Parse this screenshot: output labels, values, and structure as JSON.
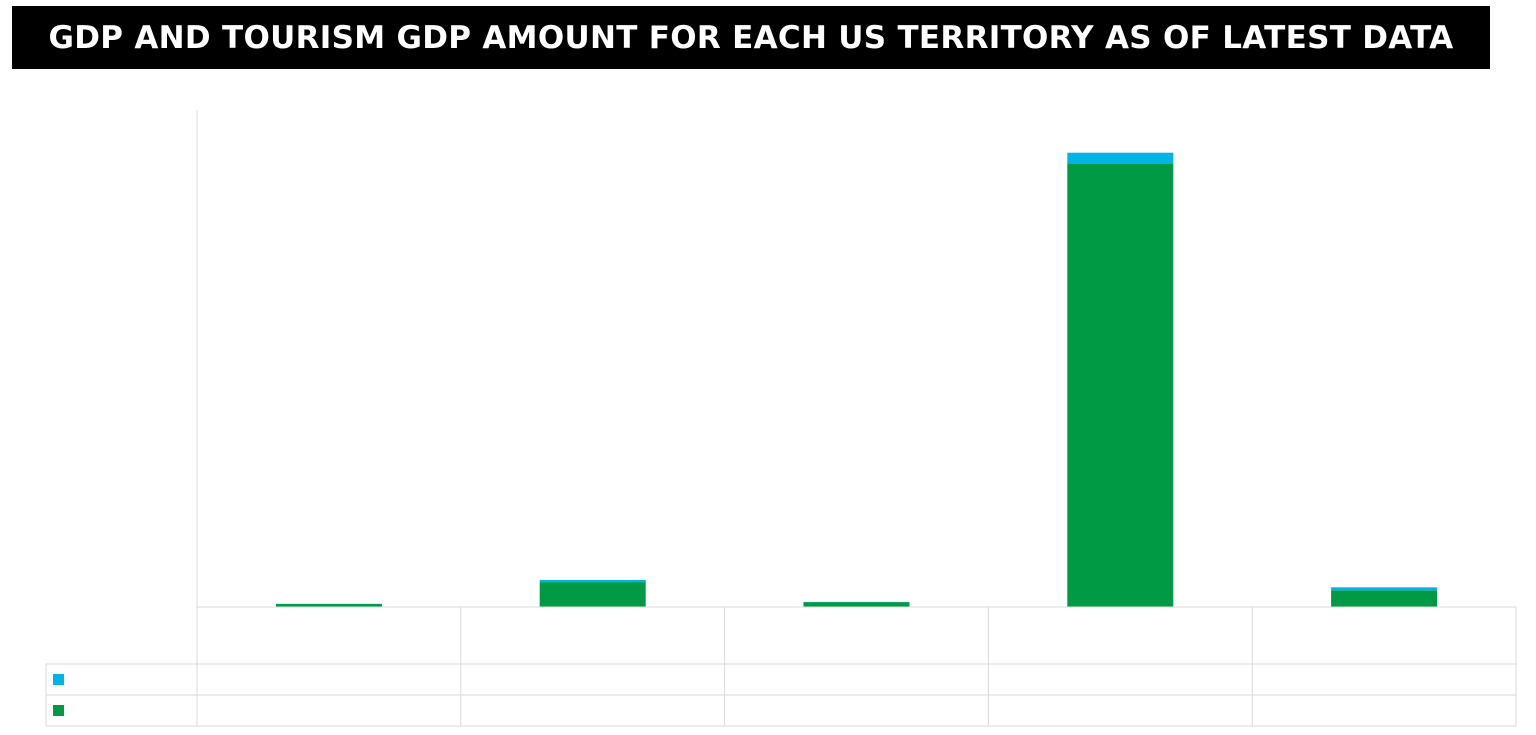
{
  "chart_data": {
    "type": "bar",
    "stacked": true,
    "title": "GDP AND TOURISM GDP AMOUNT FOR EACH US TERRITORY AS OF LATEST DATA",
    "categories": [
      "",
      "",
      "",
      "",
      ""
    ],
    "series": [
      {
        "name": "",
        "color": "#00B4E6",
        "values": [
          0.05,
          0.4,
          0.05,
          2.1,
          0.55
        ]
      },
      {
        "name": "",
        "color": "#009A44",
        "values": [
          0.55,
          4.6,
          0.9,
          82.0,
          3.1
        ]
      }
    ],
    "ylim": [
      0,
      92
    ],
    "xlabel": "",
    "ylabel": "",
    "grid": false,
    "legend": "table-rows-left",
    "show_data_table": true
  }
}
